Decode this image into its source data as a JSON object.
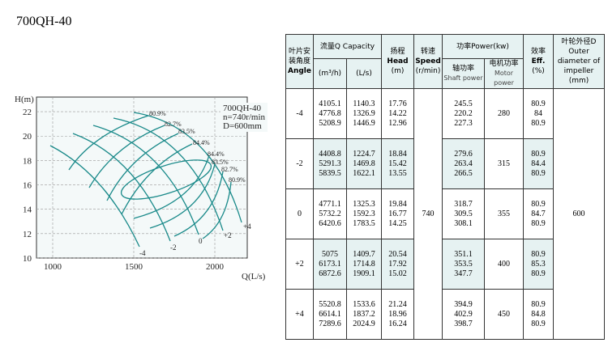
{
  "title": "700QH-40",
  "figure": {
    "y_label": "H(m)",
    "x_label": "Q(L/s)",
    "xlim": [
      900,
      2200
    ],
    "ylim": [
      10,
      23.2
    ],
    "xticks": [
      1000,
      1500,
      2000
    ],
    "yticks": [
      10,
      12,
      14,
      16,
      18,
      20,
      22
    ],
    "info": [
      "700QH-40",
      "n=740r/min",
      "D=600mm"
    ],
    "efficiency_labels": [
      "80.9%",
      "82.7%",
      "83.5%",
      "84.4%",
      "84.4%",
      "83.5%",
      "82.7%",
      "80.9%"
    ],
    "angle_labels": [
      "-4",
      "-2",
      "0",
      "+2",
      "+4"
    ]
  },
  "table": {
    "headers": {
      "angle_cn": "叶片安装角度",
      "angle_en": "Angle",
      "capacity": "流量Q Capacity",
      "m3h": "(m³/h)",
      "ls": "(L/s)",
      "head_cn": "扬程",
      "head_en": "Head",
      "head_unit": "(m)",
      "speed_cn": "转速",
      "speed_en": "Speed",
      "speed_unit": "(r/min)",
      "power": "功率Power(kw)",
      "shaft_cn": "轴功率",
      "shaft_en": "Shaft power",
      "motor_cn": "电机功率",
      "motor_en": "Motor power",
      "eff_cn": "效率",
      "eff_en": "Eff.",
      "eff_unit": "(%)",
      "dia_cn": "叶轮外径D",
      "dia_en": "Outer diameter of impeller",
      "dia_unit": "(mm)"
    },
    "speed": 740,
    "diameter": 600,
    "rows": [
      {
        "angle": "-4",
        "capacity_m3h": [
          4105.1,
          4776.8,
          5208.9
        ],
        "capacity_ls": [
          1140.3,
          1326.9,
          1446.9
        ],
        "head": [
          17.76,
          14.22,
          12.96
        ],
        "shaft_power": [
          245.5,
          220.2,
          227.3
        ],
        "motor_power": 280,
        "efficiency": [
          80.9,
          84,
          80.9
        ]
      },
      {
        "angle": "-2",
        "capacity_m3h": [
          4408.8,
          5291.3,
          5839.5
        ],
        "capacity_ls": [
          1224.7,
          1469.8,
          1622.1
        ],
        "head": [
          18.84,
          15.42,
          13.55
        ],
        "shaft_power": [
          279.6,
          263.4,
          266.5
        ],
        "motor_power": 315,
        "efficiency": [
          80.9,
          84.4,
          80.9
        ]
      },
      {
        "angle": "0",
        "capacity_m3h": [
          4771.1,
          5732.2,
          6420.6
        ],
        "capacity_ls": [
          1325.3,
          1592.3,
          1783.5
        ],
        "head": [
          19.84,
          16.77,
          14.25
        ],
        "shaft_power": [
          318.7,
          309.5,
          308.1
        ],
        "motor_power": 355,
        "efficiency": [
          80.9,
          84.7,
          80.9
        ]
      },
      {
        "angle": "+2",
        "capacity_m3h": [
          5075,
          6173.1,
          6872.6
        ],
        "capacity_ls": [
          1409.7,
          1714.8,
          1909.1
        ],
        "head": [
          20.54,
          17.92,
          15.02
        ],
        "shaft_power": [
          351.1,
          353.5,
          347.7
        ],
        "motor_power": 400,
        "efficiency": [
          80.9,
          85.3,
          80.9
        ]
      },
      {
        "angle": "+4",
        "capacity_m3h": [
          5520.8,
          6614.1,
          7289.6
        ],
        "capacity_ls": [
          1533.6,
          1837.2,
          2024.9
        ],
        "head": [
          21.24,
          18.96,
          16.24
        ],
        "shaft_power": [
          394.9,
          402.9,
          398.7
        ],
        "motor_power": 450,
        "efficiency": [
          80.9,
          84.8,
          80.9
        ]
      }
    ]
  }
}
